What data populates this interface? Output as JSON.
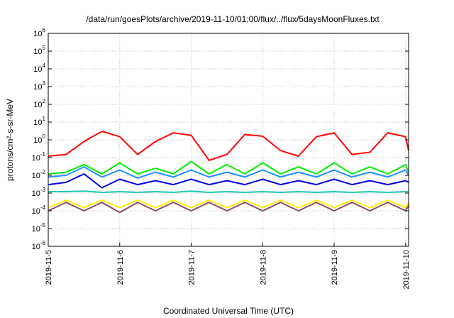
{
  "chart_data": {
    "type": "line",
    "title": "/data/run/goesPlots/archive/2019-11-10/01:00/flux/../flux/5daysMoonFluxes.txt",
    "xlabel": "Coordinated Universal Time (UTC)",
    "ylabel": "protons/cm²-s-sr-MeV",
    "yscale": "log",
    "ylim": [
      1e-06,
      1000000.0
    ],
    "xlim": [
      "2019-11-05T00:00",
      "2019-11-10T01:00"
    ],
    "x_ticks": [
      "2019-11-5",
      "2019-11-6",
      "2019-11-7",
      "2019-11-8",
      "2019-11-9",
      "2019-11-10"
    ],
    "y_ticks": [
      "10^-6",
      "10^-5",
      "10^-4",
      "10^-3",
      "10^-2",
      "10^-1",
      "10^0",
      "10^1",
      "10^2",
      "10^3",
      "10^4",
      "10^5",
      "10^6"
    ],
    "grid": true,
    "x_times": [
      "2019-11-05T00:00",
      "2019-11-05T06:00",
      "2019-11-05T12:00",
      "2019-11-05T18:00",
      "2019-11-06T00:00",
      "2019-11-06T06:00",
      "2019-11-06T12:00",
      "2019-11-06T18:00",
      "2019-11-07T00:00",
      "2019-11-07T06:00",
      "2019-11-07T12:00",
      "2019-11-07T18:00",
      "2019-11-08T00:00",
      "2019-11-08T06:00",
      "2019-11-08T12:00",
      "2019-11-08T18:00",
      "2019-11-09T00:00",
      "2019-11-09T06:00",
      "2019-11-09T12:00",
      "2019-11-09T18:00",
      "2019-11-10T00:00",
      "2019-11-10T01:00"
    ],
    "series": [
      {
        "color": "#ff0000",
        "values": [
          0.12,
          0.15,
          0.8,
          3.0,
          1.5,
          0.15,
          0.8,
          2.5,
          1.8,
          0.07,
          0.15,
          2.0,
          1.6,
          0.25,
          0.12,
          1.5,
          2.5,
          0.15,
          0.2,
          2.5,
          1.5,
          0.25
        ]
      },
      {
        "color": "#00ee00",
        "values": [
          0.012,
          0.015,
          0.04,
          0.012,
          0.05,
          0.012,
          0.025,
          0.012,
          0.06,
          0.012,
          0.04,
          0.012,
          0.05,
          0.012,
          0.03,
          0.012,
          0.05,
          0.012,
          0.03,
          0.012,
          0.04,
          0.015
        ]
      },
      {
        "color": "#1e90ff",
        "values": [
          0.008,
          0.01,
          0.03,
          0.008,
          0.02,
          0.007,
          0.015,
          0.008,
          0.02,
          0.008,
          0.015,
          0.008,
          0.02,
          0.008,
          0.015,
          0.008,
          0.02,
          0.008,
          0.015,
          0.008,
          0.02,
          0.01
        ]
      },
      {
        "color": "#0000ee",
        "values": [
          0.003,
          0.004,
          0.012,
          0.002,
          0.006,
          0.003,
          0.005,
          0.003,
          0.006,
          0.003,
          0.005,
          0.003,
          0.006,
          0.003,
          0.005,
          0.003,
          0.006,
          0.003,
          0.005,
          0.003,
          0.005,
          0.004
        ]
      },
      {
        "color": "#20c8b0",
        "values": [
          0.0012,
          0.0012,
          0.0013,
          0.0011,
          0.0012,
          0.0011,
          0.0012,
          0.0011,
          0.0013,
          0.0011,
          0.0012,
          0.0011,
          0.0012,
          0.0011,
          0.0012,
          0.0011,
          0.0012,
          0.0011,
          0.0012,
          0.0011,
          0.0012,
          0.0012
        ]
      },
      {
        "color": "#ffee00",
        "values": [
          0.00015,
          0.0004,
          0.00015,
          0.0004,
          0.00015,
          0.0004,
          0.00015,
          0.0004,
          0.00015,
          0.0004,
          0.00015,
          0.0004,
          0.00015,
          0.0004,
          0.00015,
          0.0004,
          0.00015,
          0.0004,
          0.00015,
          0.0004,
          0.00015,
          0.0003
        ]
      },
      {
        "color": "#8b4a6b",
        "values": [
          0.0001,
          0.0003,
          0.0001,
          0.0003,
          8e-05,
          0.0003,
          0.0001,
          0.0003,
          0.0001,
          0.0003,
          0.0001,
          0.0003,
          0.0001,
          0.0003,
          0.0001,
          0.0003,
          0.0001,
          0.0003,
          0.0001,
          0.0003,
          0.0001,
          0.0002
        ]
      }
    ]
  }
}
